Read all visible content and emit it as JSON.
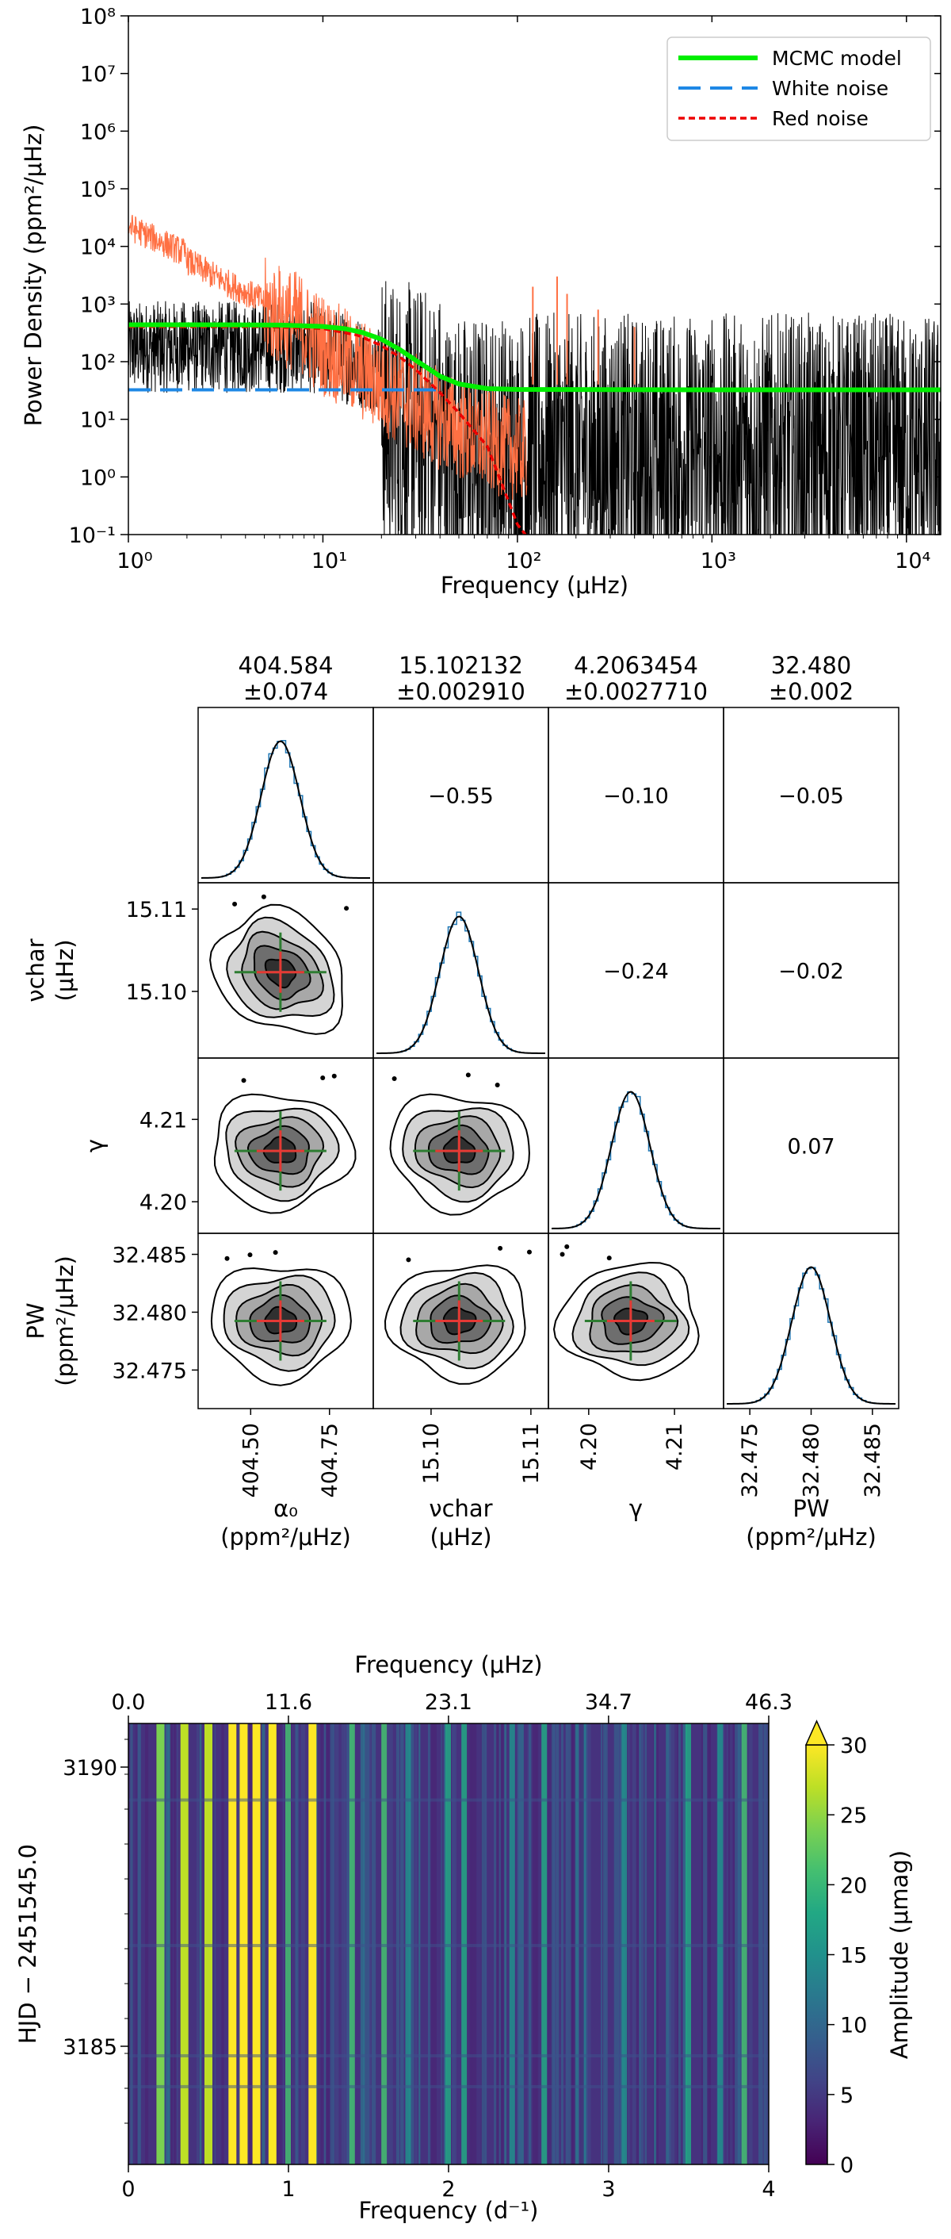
{
  "chart_data": [
    {
      "type": "line",
      "xlabel": "Frequency (μHz)",
      "ylabel": "Power Density (ppm²/μHz)",
      "x_scale": "log",
      "y_scale": "log",
      "xlim": [
        1,
        15000
      ],
      "ylim": [
        0.1,
        100000000
      ],
      "xticks": [
        "10⁰",
        "10¹",
        "10²",
        "10³",
        "10⁴"
      ],
      "yticks": [
        "10⁻¹",
        "10⁰",
        "10¹",
        "10²",
        "10³",
        "10⁴",
        "10⁵",
        "10⁶",
        "10⁷",
        "10⁸"
      ],
      "legend_position": "top-right",
      "series": [
        {
          "name": "MCMC model",
          "color": "#00ee00",
          "style": "solid",
          "x": [
            1,
            3,
            6,
            10,
            13,
            16,
            20,
            25,
            30,
            40,
            50,
            70,
            100,
            1000,
            15000
          ],
          "y": [
            437,
            436,
            431,
            408,
            373,
            320,
            245,
            160,
            106,
            56,
            41,
            34,
            33,
            32.5,
            32.5
          ]
        },
        {
          "name": "White noise",
          "color": "#1e88e5",
          "style": "dashed",
          "x": [
            1,
            40
          ],
          "y": [
            32.5,
            32.5
          ]
        },
        {
          "name": "Red noise",
          "color": "#ee0000",
          "style": "dotted",
          "x": [
            1,
            5,
            10,
            15,
            20,
            25,
            30,
            40,
            50,
            70,
            100,
            110
          ],
          "y": [
            404,
            403,
            376,
            289,
            190,
            119,
            73,
            29,
            13,
            3.4,
            0.15,
            0.1
          ]
        },
        {
          "name": "",
          "color": "#ff7043",
          "style": "thin",
          "x": [
            1,
            1.5,
            2,
            2.5,
            3,
            4,
            5,
            7,
            10,
            15,
            20,
            30,
            50,
            100
          ],
          "y": [
            30000,
            14000,
            9000,
            12000,
            5000,
            2000,
            400,
            1200,
            500,
            300,
            200,
            100,
            30,
            2
          ]
        },
        {
          "name": "",
          "color": "#000000",
          "style": "thin",
          "x": [
            1,
            2,
            3,
            5,
            8,
            10,
            20,
            50,
            100,
            1000,
            15000
          ],
          "y": [
            500,
            300,
            800,
            100,
            1000,
            300,
            200,
            50,
            30,
            40,
            40
          ]
        }
      ]
    },
    {
      "type": "corner",
      "parameters": [
        {
          "label": "α₀",
          "unit": "(ppm²/μHz)",
          "value": "404.584",
          "error": "±0.074",
          "ticks": [
            "404.50",
            "404.75"
          ]
        },
        {
          "label": "νchar",
          "unit": "(μHz)",
          "value": "15.102132",
          "error": "±0.002910",
          "ticks": [
            "15.10",
            "15.11"
          ]
        },
        {
          "label": "γ",
          "unit": "",
          "value": "4.2063454",
          "error": "±0.0027710",
          "ticks": [
            "4.20",
            "4.21"
          ]
        },
        {
          "label": "PW",
          "unit": "(ppm²/μHz)",
          "value": "32.480",
          "error": "±0.002",
          "ticks": [
            "32.475",
            "32.480",
            "32.485"
          ]
        }
      ],
      "correlations": [
        "−0.55",
        "−0.10",
        "−0.05",
        "−0.24",
        "−0.02",
        "0.07"
      ],
      "ylabels": [
        {
          "label": "νchar",
          "unit": "(μHz)",
          "ticks": [
            "15.11",
            "15.10"
          ]
        },
        {
          "label": "γ",
          "unit": "",
          "ticks": [
            "4.21",
            "4.20"
          ]
        },
        {
          "label": "PW",
          "unit": "(ppm²/μHz)",
          "ticks": [
            "32.485",
            "32.480",
            "32.475"
          ]
        }
      ]
    },
    {
      "type": "heatmap",
      "xlabel": "Frequency (d⁻¹)",
      "xlabel_top": "Frequency (μHz)",
      "ylabel": "HJD − 2451545.0",
      "xlim": [
        0,
        4
      ],
      "xticks": [
        "0",
        "1",
        "2",
        "3",
        "4"
      ],
      "xticks_top": [
        "0.0",
        "11.6",
        "23.1",
        "34.7",
        "46.3"
      ],
      "yticks": [
        "3185",
        "3190"
      ],
      "colorbar_label": "Amplitude (μmag)",
      "colorbar_ticks": [
        "0",
        "5",
        "10",
        "15",
        "20",
        "25",
        "30"
      ],
      "colorbar_range": [
        0,
        30
      ],
      "strong_frequencies_d": [
        0.2,
        0.35,
        0.5,
        0.65,
        0.72,
        0.8,
        0.9,
        1.15
      ],
      "medium_frequencies_d": [
        1.0,
        1.4,
        1.6,
        1.75,
        2.0,
        2.1,
        2.4,
        2.6,
        3.1,
        3.5,
        3.7,
        3.85
      ]
    }
  ]
}
